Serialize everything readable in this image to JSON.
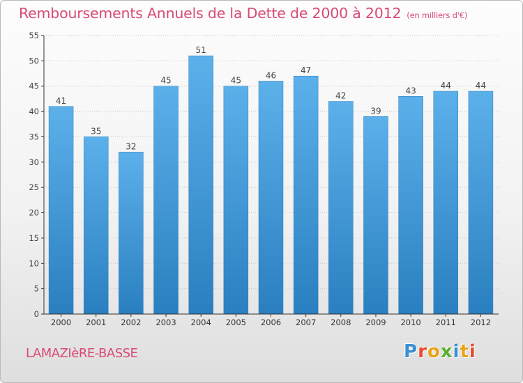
{
  "title": "Remboursements Annuels de la Dette de 2000 à 2012",
  "unit": "(en milliers d'€)",
  "commune": "LAMAZIèRE-BASSE",
  "logo": {
    "letters": [
      "P",
      "r",
      "o",
      "x",
      "i",
      "t",
      "i"
    ],
    "colors": [
      "#3a8fd1",
      "#e84a2e",
      "#e8a319",
      "#5cae2e",
      "#3a8fd1",
      "#e8a319",
      "#e84a2e"
    ]
  },
  "chart_data": {
    "type": "bar",
    "categories": [
      "2000",
      "2001",
      "2002",
      "2003",
      "2004",
      "2005",
      "2006",
      "2007",
      "2008",
      "2009",
      "2010",
      "2011",
      "2012"
    ],
    "values": [
      41,
      35,
      32,
      45,
      51,
      45,
      46,
      47,
      42,
      39,
      43,
      44,
      44
    ],
    "ylim": [
      0,
      55
    ],
    "yticks": [
      0,
      5,
      10,
      15,
      20,
      25,
      30,
      35,
      40,
      45,
      50,
      55
    ],
    "grid": true,
    "bar_color": "#4a9fdc",
    "title": "Remboursements Annuels de la Dette de 2000 à 2012",
    "xlabel": "",
    "ylabel": ""
  }
}
